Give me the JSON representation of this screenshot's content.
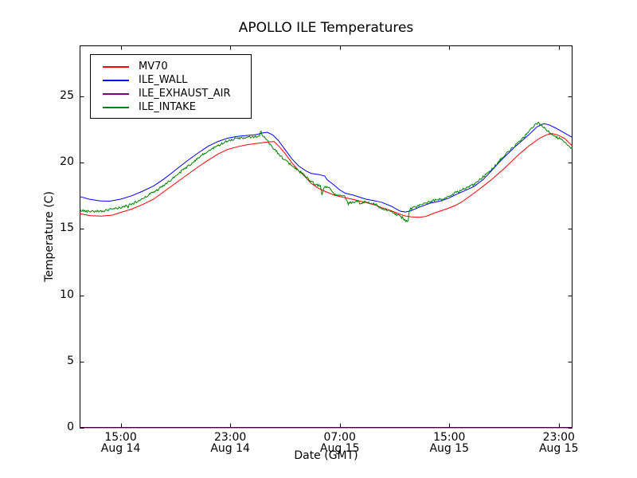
{
  "figure": {
    "title": "APOLLO ILE Temperatures"
  },
  "axes": {
    "xlabel": "Date (GMT)",
    "ylabel": "Temperature (C)",
    "ytick_labels": [
      "0",
      "5",
      "10",
      "15",
      "20",
      "25"
    ],
    "ytick_values": [
      0,
      5,
      10,
      15,
      20,
      25
    ],
    "xticks": [
      {
        "t": 3,
        "time": "15:00",
        "date": "Aug 14"
      },
      {
        "t": 11,
        "time": "23:00",
        "date": "Aug 14"
      },
      {
        "t": 19,
        "time": "07:00",
        "date": "Aug 15"
      },
      {
        "t": 27,
        "time": "15:00",
        "date": "Aug 15"
      },
      {
        "t": 35,
        "time": "23:00",
        "date": "Aug 15"
      }
    ]
  },
  "legend": {
    "items": [
      {
        "label": "MV70",
        "color": "#ff0000"
      },
      {
        "label": "ILE_WALL",
        "color": "#0000ff"
      },
      {
        "label": "ILE_EXHAUST_AIR",
        "color": "#800080"
      },
      {
        "label": "ILE_INTAKE",
        "color": "#008000"
      }
    ]
  },
  "chart_data": {
    "type": "line",
    "title": "APOLLO ILE Temperatures",
    "xlabel": "Date (GMT)",
    "ylabel": "Temperature (C)",
    "x_unit": "hours since Aug 14 12:00 GMT",
    "xlim": [
      0,
      36
    ],
    "ylim": [
      0,
      28.85
    ],
    "grid": false,
    "legend_position": "upper left",
    "x_tick_positions_hours": [
      3,
      11,
      19,
      27,
      35
    ],
    "series": [
      {
        "name": "MV70",
        "color": "#ff0000",
        "noise": 0,
        "points": [
          [
            0,
            16.15
          ],
          [
            0.8,
            16.0
          ],
          [
            1.6,
            15.97
          ],
          [
            2.4,
            16.05
          ],
          [
            3,
            16.25
          ],
          [
            3.8,
            16.5
          ],
          [
            4.6,
            16.85
          ],
          [
            5.4,
            17.25
          ],
          [
            6.2,
            17.85
          ],
          [
            7,
            18.45
          ],
          [
            7.8,
            19.05
          ],
          [
            8.6,
            19.65
          ],
          [
            9.4,
            20.2
          ],
          [
            10.1,
            20.65
          ],
          [
            10.8,
            21.0
          ],
          [
            11.5,
            21.2
          ],
          [
            12.2,
            21.35
          ],
          [
            12.9,
            21.45
          ],
          [
            13.6,
            21.55
          ],
          [
            14.2,
            21.6
          ],
          [
            14.6,
            21.2
          ],
          [
            15,
            20.7
          ],
          [
            15.5,
            20.0
          ],
          [
            16,
            19.4
          ],
          [
            16.5,
            18.9
          ],
          [
            16.9,
            18.45
          ],
          [
            17.4,
            18.1
          ],
          [
            17.9,
            17.85
          ],
          [
            18.6,
            17.55
          ],
          [
            19.4,
            17.35
          ],
          [
            20.1,
            17.2
          ],
          [
            20.9,
            17.0
          ],
          [
            21.6,
            16.8
          ],
          [
            22.1,
            16.6
          ],
          [
            22.7,
            16.4
          ],
          [
            23.2,
            16.2
          ],
          [
            23.7,
            16.0
          ],
          [
            24.2,
            15.92
          ],
          [
            24.8,
            15.88
          ],
          [
            25.3,
            15.95
          ],
          [
            25.9,
            16.2
          ],
          [
            26.9,
            16.55
          ],
          [
            27.5,
            16.8
          ],
          [
            28,
            17.1
          ],
          [
            29,
            17.85
          ],
          [
            30,
            18.65
          ],
          [
            31,
            19.55
          ],
          [
            32,
            20.55
          ],
          [
            32.8,
            21.25
          ],
          [
            33.6,
            21.85
          ],
          [
            34.1,
            22.1
          ],
          [
            34.5,
            22.2
          ],
          [
            34.9,
            22.1
          ],
          [
            35.4,
            21.85
          ],
          [
            36,
            21.25
          ]
        ]
      },
      {
        "name": "ILE_WALL",
        "color": "#0000ff",
        "noise": 0,
        "points": [
          [
            0,
            17.45
          ],
          [
            0.7,
            17.25
          ],
          [
            1.5,
            17.12
          ],
          [
            2.2,
            17.1
          ],
          [
            3,
            17.25
          ],
          [
            3.8,
            17.5
          ],
          [
            4.6,
            17.85
          ],
          [
            5.4,
            18.25
          ],
          [
            6.2,
            18.8
          ],
          [
            7,
            19.45
          ],
          [
            7.8,
            20.1
          ],
          [
            8.6,
            20.7
          ],
          [
            9.4,
            21.25
          ],
          [
            10.1,
            21.6
          ],
          [
            10.8,
            21.85
          ],
          [
            11.5,
            21.98
          ],
          [
            12.2,
            22.05
          ],
          [
            12.9,
            22.12
          ],
          [
            13.4,
            22.25
          ],
          [
            13.7,
            22.3
          ],
          [
            14.1,
            22.1
          ],
          [
            14.5,
            21.7
          ],
          [
            15,
            21.0
          ],
          [
            15.5,
            20.3
          ],
          [
            16,
            19.75
          ],
          [
            16.5,
            19.4
          ],
          [
            16.9,
            19.2
          ],
          [
            17.5,
            19.1
          ],
          [
            17.9,
            19.0
          ],
          [
            18.1,
            18.7
          ],
          [
            18.6,
            18.3
          ],
          [
            19,
            17.95
          ],
          [
            19.4,
            17.7
          ],
          [
            20,
            17.55
          ],
          [
            20.9,
            17.25
          ],
          [
            21.6,
            17.12
          ],
          [
            22.1,
            17.0
          ],
          [
            22.8,
            16.7
          ],
          [
            23.4,
            16.35
          ],
          [
            23.8,
            16.28
          ],
          [
            24.2,
            16.38
          ],
          [
            24.7,
            16.6
          ],
          [
            25.6,
            16.95
          ],
          [
            26.3,
            17.1
          ],
          [
            26.9,
            17.3
          ],
          [
            27.5,
            17.6
          ],
          [
            28.8,
            18.2
          ],
          [
            29.5,
            18.75
          ],
          [
            30,
            19.3
          ],
          [
            30.8,
            20.2
          ],
          [
            31.8,
            21.2
          ],
          [
            32.8,
            22.1
          ],
          [
            33.4,
            22.7
          ],
          [
            33.9,
            22.95
          ],
          [
            34.3,
            22.85
          ],
          [
            34.8,
            22.6
          ],
          [
            35.4,
            22.25
          ],
          [
            36,
            21.9
          ]
        ]
      },
      {
        "name": "ILE_EXHAUST_AIR",
        "color": "#800080",
        "noise": 0,
        "points": [
          [
            0,
            0
          ],
          [
            36,
            0
          ]
        ]
      },
      {
        "name": "ILE_INTAKE",
        "color": "#008000",
        "noise": 0.09,
        "points": [
          [
            0,
            16.4
          ],
          [
            0.5,
            16.35
          ],
          [
            1,
            16.33
          ],
          [
            1.6,
            16.36
          ],
          [
            2.2,
            16.45
          ],
          [
            3,
            16.62
          ],
          [
            3.6,
            16.8
          ],
          [
            4.2,
            17.05
          ],
          [
            5,
            17.55
          ],
          [
            5.6,
            17.9
          ],
          [
            6.2,
            18.3
          ],
          [
            7,
            19.0
          ],
          [
            7.6,
            19.5
          ],
          [
            8.2,
            19.95
          ],
          [
            9,
            20.6
          ],
          [
            9.6,
            21.0
          ],
          [
            10.2,
            21.35
          ],
          [
            10.8,
            21.65
          ],
          [
            11.3,
            21.8
          ],
          [
            12,
            21.88
          ],
          [
            12.6,
            21.92
          ],
          [
            13.05,
            22.0
          ],
          [
            13.18,
            22.1
          ],
          [
            13.24,
            22.55
          ],
          [
            13.32,
            22.05
          ],
          [
            13.5,
            21.9
          ],
          [
            14,
            21.3
          ],
          [
            14.6,
            20.6
          ],
          [
            15.2,
            20.0
          ],
          [
            15.8,
            19.55
          ],
          [
            16.4,
            19.1
          ],
          [
            16.9,
            18.6
          ],
          [
            17.3,
            18.35
          ],
          [
            17.6,
            18.25
          ],
          [
            17.7,
            17.5
          ],
          [
            17.85,
            18.2
          ],
          [
            18.3,
            18.05
          ],
          [
            18.6,
            17.65
          ],
          [
            19,
            17.55
          ],
          [
            19.35,
            17.45
          ],
          [
            19.55,
            17.05
          ],
          [
            20,
            17.0
          ],
          [
            20.3,
            17.1
          ],
          [
            20.55,
            16.85
          ],
          [
            20.8,
            17.05
          ],
          [
            21.2,
            16.95
          ],
          [
            21.7,
            16.85
          ],
          [
            22.1,
            16.5
          ],
          [
            22.5,
            16.45
          ],
          [
            22.8,
            16.35
          ],
          [
            23.2,
            16.05
          ],
          [
            23.6,
            15.85
          ],
          [
            23.85,
            15.6
          ],
          [
            24.0,
            15.68
          ],
          [
            24.08,
            16.45
          ],
          [
            24.5,
            16.65
          ],
          [
            25,
            16.9
          ],
          [
            25.6,
            17.05
          ],
          [
            26.2,
            17.25
          ],
          [
            26.9,
            17.4
          ],
          [
            27.5,
            17.75
          ],
          [
            28,
            18.0
          ],
          [
            28.8,
            18.35
          ],
          [
            29.5,
            18.95
          ],
          [
            30,
            19.4
          ],
          [
            30.8,
            20.3
          ],
          [
            31.5,
            21.0
          ],
          [
            32,
            21.45
          ],
          [
            32.6,
            22.1
          ],
          [
            33.1,
            22.7
          ],
          [
            33.4,
            22.95
          ],
          [
            33.55,
            23.0
          ],
          [
            33.8,
            22.8
          ],
          [
            34.1,
            22.45
          ],
          [
            34.5,
            22.15
          ],
          [
            35,
            21.85
          ],
          [
            35.5,
            21.5
          ],
          [
            36,
            21.05
          ]
        ]
      }
    ]
  }
}
